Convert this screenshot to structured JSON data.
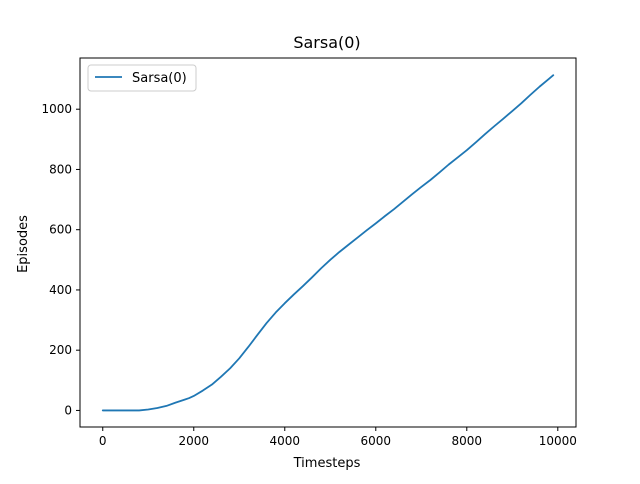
{
  "chart_data": {
    "type": "line",
    "title": "Sarsa(0)",
    "xlabel": "Timesteps",
    "ylabel": "Episodes",
    "xlim": [
      -500,
      10400
    ],
    "ylim": [
      -55,
      1170
    ],
    "xticks": [
      0,
      2000,
      4000,
      6000,
      8000,
      10000
    ],
    "yticks": [
      0,
      200,
      400,
      600,
      800,
      1000
    ],
    "grid": false,
    "legend": {
      "location": "upper-left",
      "entries": [
        "Sarsa(0)"
      ]
    },
    "series": [
      {
        "name": "Sarsa(0)",
        "color": "#1f77b4",
        "x": [
          0,
          400,
          800,
          1000,
          1200,
          1400,
          1600,
          1800,
          1900,
          2000,
          2200,
          2400,
          2600,
          2800,
          3000,
          3200,
          3400,
          3600,
          3800,
          4000,
          4200,
          4400,
          4600,
          4800,
          5000,
          5200,
          5400,
          5600,
          5800,
          6000,
          6200,
          6400,
          6600,
          6800,
          7000,
          7200,
          7400,
          7600,
          7800,
          8000,
          8200,
          8400,
          8600,
          8800,
          9000,
          9200,
          9400,
          9600,
          9800,
          9900
        ],
        "y": [
          0,
          0,
          0,
          3,
          8,
          15,
          26,
          36,
          41,
          48,
          66,
          86,
          112,
          140,
          173,
          211,
          251,
          290,
          325,
          356,
          385,
          413,
          442,
          472,
          500,
          526,
          550,
          574,
          598,
          621,
          645,
          668,
          693,
          718,
          742,
          765,
          790,
          816,
          840,
          864,
          890,
          917,
          943,
          968,
          994,
          1020,
          1048,
          1075,
          1100,
          1113
        ]
      }
    ]
  }
}
